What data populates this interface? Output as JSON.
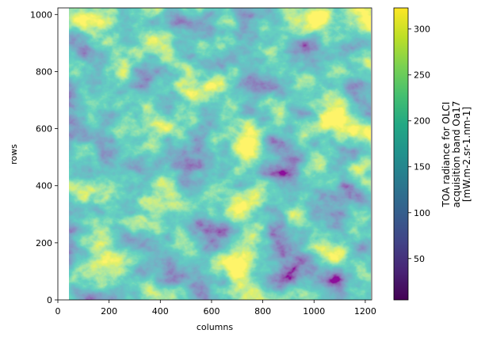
{
  "chart_data": {
    "type": "image",
    "colormap": "viridis",
    "x_label": "columns",
    "y_label": "rows",
    "xlim": [
      0,
      1225
    ],
    "xticks": [
      0,
      200,
      400,
      600,
      800,
      1000,
      1200
    ],
    "ylim": [
      0,
      1023
    ],
    "yticks": [
      0,
      200,
      400,
      600,
      800,
      1000
    ],
    "colorbar": {
      "lim": [
        5,
        323
      ],
      "ticks": [
        50,
        100,
        150,
        200,
        250,
        300
      ],
      "label": [
        "TOA radiance for OLCI",
        "acquisition band Oa17",
        "[mW.m-2.sr-1.nm-1]"
      ]
    }
  }
}
